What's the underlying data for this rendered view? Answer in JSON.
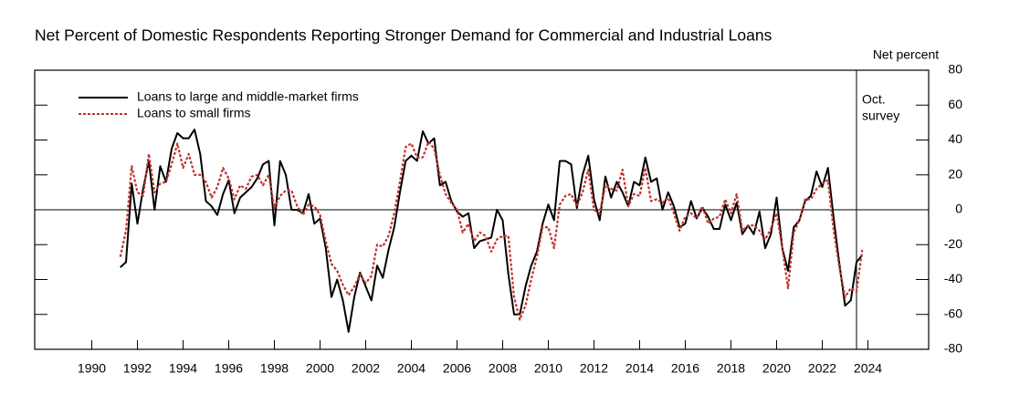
{
  "chart_data": {
    "type": "line",
    "title": "Net Percent of Domestic Respondents Reporting Stronger Demand for Commercial and Industrial Loans",
    "y_axis_label": "Net percent",
    "annotation": {
      "text": [
        "Oct.",
        "survey"
      ],
      "x": 2023.5
    },
    "xlim": [
      1987.5,
      2026.66
    ],
    "ylim": [
      -80,
      80
    ],
    "xticks": [
      1990,
      1992,
      1994,
      1996,
      1998,
      2000,
      2002,
      2004,
      2006,
      2008,
      2010,
      2012,
      2014,
      2016,
      2018,
      2020,
      2022,
      2024
    ],
    "yticks": [
      -80,
      -60,
      -40,
      -20,
      0,
      20,
      40,
      60,
      80
    ],
    "legend": "upper left",
    "x": [
      1991.25,
      1991.5,
      1991.75,
      1992,
      1992.25,
      1992.5,
      1992.75,
      1993,
      1993.25,
      1993.5,
      1993.75,
      1994,
      1994.25,
      1994.5,
      1994.75,
      1995,
      1995.25,
      1995.5,
      1995.75,
      1996,
      1996.25,
      1996.5,
      1996.75,
      1997,
      1997.25,
      1997.5,
      1997.75,
      1998,
      1998.25,
      1998.5,
      1998.75,
      1999,
      1999.25,
      1999.5,
      1999.75,
      2000,
      2000.25,
      2000.5,
      2000.75,
      2001,
      2001.25,
      2001.5,
      2001.75,
      2002,
      2002.25,
      2002.5,
      2002.75,
      2003,
      2003.25,
      2003.5,
      2003.75,
      2004,
      2004.25,
      2004.5,
      2004.75,
      2005,
      2005.25,
      2005.5,
      2005.75,
      2006,
      2006.25,
      2006.5,
      2006.75,
      2007,
      2007.25,
      2007.5,
      2007.75,
      2008,
      2008.25,
      2008.5,
      2008.75,
      2009,
      2009.25,
      2009.5,
      2009.75,
      2010,
      2010.25,
      2010.5,
      2010.75,
      2011,
      2011.25,
      2011.5,
      2011.75,
      2012,
      2012.25,
      2012.5,
      2012.75,
      2013,
      2013.25,
      2013.5,
      2013.75,
      2014,
      2014.25,
      2014.5,
      2014.75,
      2015,
      2015.25,
      2015.5,
      2015.75,
      2016,
      2016.25,
      2016.5,
      2016.75,
      2017,
      2017.25,
      2017.5,
      2017.75,
      2018,
      2018.25,
      2018.5,
      2018.75,
      2019,
      2019.25,
      2019.5,
      2019.75,
      2020,
      2020.25,
      2020.5,
      2020.75,
      2021,
      2021.25,
      2021.5,
      2021.75,
      2022,
      2022.25,
      2022.5,
      2022.75,
      2023,
      2023.25,
      2023.5,
      2023.75
    ],
    "series": [
      {
        "name": "Loans to large and middle-market firms",
        "color": "#000000",
        "dash": false,
        "values": [
          -33,
          -30,
          15,
          -8,
          12,
          28,
          0,
          25,
          16,
          35,
          44,
          41,
          41,
          46,
          32,
          5,
          2,
          -3,
          9,
          17,
          -2,
          7,
          10,
          13,
          18,
          26,
          28,
          -9,
          28,
          20,
          0,
          0,
          -2,
          9,
          -8,
          -5,
          -22,
          -50,
          -40,
          -52,
          -70,
          -50,
          -36,
          -44,
          -52,
          -32,
          -39,
          -23,
          -10,
          10,
          28,
          31,
          28,
          45,
          38,
          41,
          14,
          16,
          5,
          -1,
          -4,
          -2,
          -22,
          -18,
          -17,
          -16,
          0,
          -6,
          -37,
          -60,
          -60,
          -44,
          -32,
          -24,
          -8,
          3,
          -6,
          28,
          28,
          26,
          1,
          20,
          31,
          6,
          -6,
          19,
          7,
          16,
          10,
          2,
          16,
          14,
          30,
          16,
          18,
          0,
          10,
          2,
          -10,
          -8,
          5,
          -5,
          1,
          -4,
          -11,
          -11,
          3,
          -6,
          4,
          -14,
          -9,
          -14,
          -1,
          -22,
          -14,
          7,
          -22,
          -35,
          -10,
          -6,
          5,
          8,
          22,
          13,
          24,
          -5,
          -31,
          -55,
          -52,
          -30,
          -26
        ]
      },
      {
        "name": "Loans to small firms",
        "color": "#c0332f",
        "dash": true,
        "values": [
          -27,
          -12,
          25,
          10,
          8,
          32,
          10,
          15,
          16,
          26,
          38,
          24,
          32,
          20,
          20,
          16,
          7,
          13,
          24,
          18,
          6,
          14,
          12,
          19,
          20,
          14,
          20,
          1,
          8,
          11,
          11,
          2,
          -3,
          3,
          2,
          -3,
          -18,
          -31,
          -35,
          -43,
          -49,
          -44,
          -37,
          -42,
          -38,
          -20,
          -21,
          -15,
          -2,
          16,
          36,
          38,
          30,
          30,
          39,
          35,
          20,
          9,
          4,
          0,
          -13,
          -8,
          -18,
          -13,
          -15,
          -24,
          -17,
          -15,
          -15,
          -50,
          -63,
          -55,
          -40,
          -27,
          -10,
          -10,
          -22,
          3,
          8,
          9,
          2,
          10,
          23,
          0,
          -2,
          14,
          12,
          11,
          23,
          2,
          9,
          8,
          24,
          5,
          6,
          4,
          7,
          -2,
          -12,
          -4,
          -2,
          -5,
          2,
          -8,
          -5,
          -4,
          6,
          -2,
          9,
          -12,
          -9,
          -9,
          -12,
          -17,
          -11,
          -2,
          -22,
          -45,
          -13,
          -6,
          6,
          6,
          12,
          15,
          17,
          -12,
          -33,
          -50,
          -45,
          -47,
          -23
        ]
      }
    ]
  }
}
